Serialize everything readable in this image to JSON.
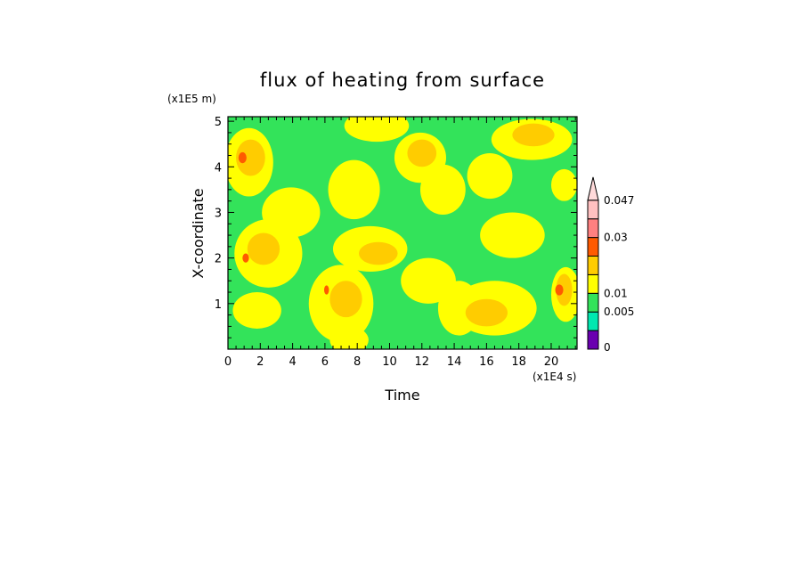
{
  "chart_data": {
    "type": "heatmap",
    "title": "flux of heating from surface",
    "xlabel": "Time",
    "ylabel": "X-coordinate",
    "x_unit": "(x1E4 s)",
    "y_unit": "(x1E5 m)",
    "xlim": [
      0,
      21.6
    ],
    "ylim": [
      0,
      5.1
    ],
    "x_ticks": [
      "0",
      "2",
      "4",
      "6",
      "8",
      "10",
      "12",
      "14",
      "16",
      "18",
      "20"
    ],
    "y_ticks": [
      "1",
      "2",
      "3",
      "4",
      "5"
    ],
    "colorbar": {
      "labels": [
        "0",
        "0.005",
        "0.01",
        "0.03",
        "0.047"
      ],
      "levels": [
        {
          "color": "#6a00b0"
        },
        {
          "color": "#00e8b0"
        },
        {
          "color": "#33e35a"
        },
        {
          "color": "#ffff00"
        },
        {
          "color": "#ffcc00"
        },
        {
          "color": "#ff5a00"
        },
        {
          "color": "#ff8080"
        },
        {
          "color": "#ffc0c0"
        },
        {
          "color": "#ffdada"
        }
      ]
    },
    "background_color": "#33e35a",
    "blobs": [
      {
        "x": 1.3,
        "y": 4.1,
        "rx": 1.5,
        "ry": 0.75,
        "level": 3
      },
      {
        "x": 2.5,
        "y": 2.1,
        "rx": 2.1,
        "ry": 0.75,
        "level": 3
      },
      {
        "x": 1.8,
        "y": 0.85,
        "rx": 1.5,
        "ry": 0.4,
        "level": 3
      },
      {
        "x": 3.9,
        "y": 3.0,
        "rx": 1.8,
        "ry": 0.55,
        "level": 3
      },
      {
        "x": 7.0,
        "y": 1.0,
        "rx": 2.0,
        "ry": 0.85,
        "level": 3
      },
      {
        "x": 8.8,
        "y": 2.2,
        "rx": 2.3,
        "ry": 0.5,
        "level": 3
      },
      {
        "x": 7.8,
        "y": 3.5,
        "rx": 1.6,
        "ry": 0.65,
        "level": 3
      },
      {
        "x": 7.5,
        "y": 0.2,
        "rx": 1.2,
        "ry": 0.3,
        "level": 3
      },
      {
        "x": 9.2,
        "y": 4.9,
        "rx": 2.0,
        "ry": 0.35,
        "level": 3
      },
      {
        "x": 11.9,
        "y": 4.2,
        "rx": 1.6,
        "ry": 0.55,
        "level": 3
      },
      {
        "x": 13.3,
        "y": 3.5,
        "rx": 1.4,
        "ry": 0.55,
        "level": 3
      },
      {
        "x": 12.4,
        "y": 1.5,
        "rx": 1.7,
        "ry": 0.5,
        "level": 3
      },
      {
        "x": 14.3,
        "y": 0.9,
        "rx": 1.3,
        "ry": 0.6,
        "level": 3
      },
      {
        "x": 16.5,
        "y": 0.9,
        "rx": 2.6,
        "ry": 0.6,
        "level": 3
      },
      {
        "x": 17.6,
        "y": 2.5,
        "rx": 2.0,
        "ry": 0.5,
        "level": 3
      },
      {
        "x": 18.8,
        "y": 4.6,
        "rx": 2.5,
        "ry": 0.45,
        "level": 3
      },
      {
        "x": 16.2,
        "y": 3.8,
        "rx": 1.4,
        "ry": 0.5,
        "level": 3
      },
      {
        "x": 20.9,
        "y": 1.2,
        "rx": 0.9,
        "ry": 0.6,
        "level": 3
      },
      {
        "x": 20.8,
        "y": 3.6,
        "rx": 0.8,
        "ry": 0.35,
        "level": 3
      },
      {
        "x": 1.4,
        "y": 4.2,
        "rx": 0.9,
        "ry": 0.4,
        "level": 4
      },
      {
        "x": 2.2,
        "y": 2.2,
        "rx": 1.0,
        "ry": 0.35,
        "level": 4
      },
      {
        "x": 7.3,
        "y": 1.1,
        "rx": 1.0,
        "ry": 0.4,
        "level": 4
      },
      {
        "x": 9.3,
        "y": 2.1,
        "rx": 1.2,
        "ry": 0.25,
        "level": 4
      },
      {
        "x": 12.0,
        "y": 4.3,
        "rx": 0.9,
        "ry": 0.3,
        "level": 4
      },
      {
        "x": 16.0,
        "y": 0.8,
        "rx": 1.3,
        "ry": 0.3,
        "level": 4
      },
      {
        "x": 18.9,
        "y": 4.7,
        "rx": 1.3,
        "ry": 0.25,
        "level": 4
      },
      {
        "x": 20.8,
        "y": 1.3,
        "rx": 0.5,
        "ry": 0.35,
        "level": 4
      },
      {
        "x": 0.9,
        "y": 4.2,
        "rx": 0.25,
        "ry": 0.12,
        "level": 5
      },
      {
        "x": 20.5,
        "y": 1.3,
        "rx": 0.25,
        "ry": 0.12,
        "level": 5
      },
      {
        "x": 1.1,
        "y": 2.0,
        "rx": 0.2,
        "ry": 0.1,
        "level": 5
      },
      {
        "x": 6.1,
        "y": 1.3,
        "rx": 0.15,
        "ry": 0.1,
        "level": 5
      }
    ]
  }
}
